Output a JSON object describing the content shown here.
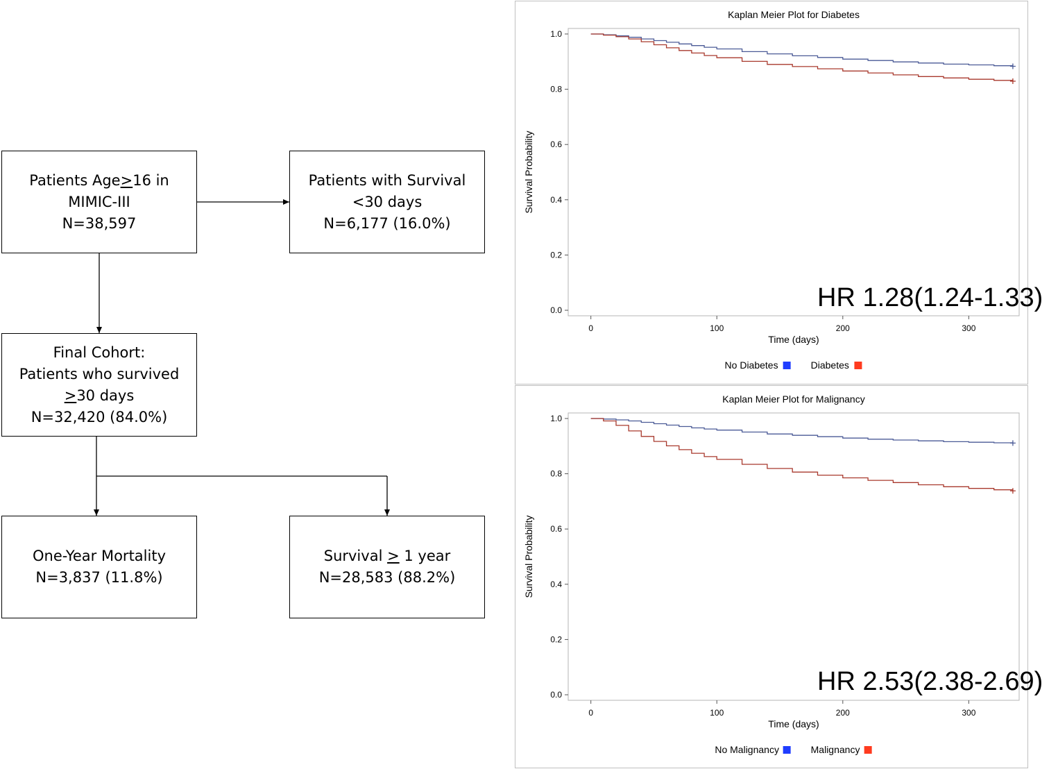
{
  "flowchart": {
    "box_start": {
      "line1_pre": "Patients Age",
      "line1_u": ">",
      "line1_post": "16 in",
      "line2": "MIMIC-III",
      "line3": "N=38,597"
    },
    "box_excluded": {
      "line1": "Patients with Survival",
      "line2": "<30 days",
      "line3": "N=6,177 (16.0%)"
    },
    "box_final": {
      "line1": "Final Cohort:",
      "line2": "Patients who survived",
      "line3_u": ">",
      "line3_post": "30 days",
      "line4": "N=32,420 (84.0%)"
    },
    "box_mortality": {
      "line1": "One-Year Mortality",
      "line2": "N=3,837 (11.8%)"
    },
    "box_survival": {
      "line1_pre": "Survival ",
      "line1_u": ">",
      "line1_post": " 1 year",
      "line2": "N=28,583 (88.2%)"
    }
  },
  "chart_data": [
    {
      "type": "line",
      "title": "Kaplan Meier Plot for Diabetes",
      "xlabel": "Time (days)",
      "ylabel": "Survival Probability",
      "xlim": [
        -18,
        340
      ],
      "ylim": [
        -0.02,
        1.02
      ],
      "xticks": [
        0,
        100,
        200,
        300
      ],
      "xtick_labels": [
        "0",
        "100",
        "200",
        "300"
      ],
      "yticks": [
        0,
        0.2,
        0.4,
        0.6,
        0.8,
        1.0
      ],
      "ytick_labels": [
        "0.0",
        "0.2",
        "0.4",
        "0.6",
        "0.8",
        "1.0"
      ],
      "grid": false,
      "legend": "bottom",
      "annotation": "HR 1.28(1.24-1.33)",
      "series": [
        {
          "name": "No Diabetes",
          "color": "#4a5a96",
          "legend_color": "#1f3dff",
          "x": [
            0,
            10,
            20,
            30,
            40,
            50,
            60,
            70,
            80,
            90,
            100,
            120,
            140,
            160,
            180,
            200,
            220,
            240,
            260,
            280,
            300,
            320,
            335
          ],
          "y": [
            1.0,
            0.997,
            0.993,
            0.988,
            0.982,
            0.976,
            0.97,
            0.964,
            0.958,
            0.952,
            0.946,
            0.936,
            0.928,
            0.921,
            0.915,
            0.909,
            0.904,
            0.899,
            0.895,
            0.891,
            0.888,
            0.885,
            0.883
          ]
        },
        {
          "name": "Diabetes",
          "color": "#a8382c",
          "legend_color": "#ff3b1f",
          "x": [
            0,
            10,
            20,
            30,
            40,
            50,
            60,
            70,
            80,
            90,
            100,
            120,
            140,
            160,
            180,
            200,
            220,
            240,
            260,
            280,
            300,
            320,
            335
          ],
          "y": [
            1.0,
            0.996,
            0.99,
            0.982,
            0.972,
            0.961,
            0.95,
            0.94,
            0.931,
            0.922,
            0.914,
            0.901,
            0.89,
            0.882,
            0.874,
            0.866,
            0.859,
            0.852,
            0.846,
            0.841,
            0.836,
            0.832,
            0.829
          ]
        }
      ]
    },
    {
      "type": "line",
      "title": "Kaplan Meier Plot for Malignancy",
      "xlabel": "Time (days)",
      "ylabel": "Survival Probability",
      "xlim": [
        -18,
        340
      ],
      "ylim": [
        -0.02,
        1.02
      ],
      "xticks": [
        0,
        100,
        200,
        300
      ],
      "xtick_labels": [
        "0",
        "100",
        "200",
        "300"
      ],
      "yticks": [
        0,
        0.2,
        0.4,
        0.6,
        0.8,
        1.0
      ],
      "ytick_labels": [
        "0.0",
        "0.2",
        "0.4",
        "0.6",
        "0.8",
        "1.0"
      ],
      "grid": false,
      "legend": "bottom",
      "annotation": "HR 2.53(2.38-2.69)",
      "series": [
        {
          "name": "No Malignancy",
          "color": "#4a5a96",
          "legend_color": "#1f3dff",
          "x": [
            0,
            10,
            20,
            30,
            40,
            50,
            60,
            70,
            80,
            90,
            100,
            120,
            140,
            160,
            180,
            200,
            220,
            240,
            260,
            280,
            300,
            320,
            335
          ],
          "y": [
            1.0,
            0.998,
            0.995,
            0.991,
            0.986,
            0.981,
            0.976,
            0.971,
            0.966,
            0.962,
            0.958,
            0.951,
            0.944,
            0.939,
            0.934,
            0.929,
            0.925,
            0.922,
            0.919,
            0.916,
            0.914,
            0.912,
            0.911
          ]
        },
        {
          "name": "Malignancy",
          "color": "#a8382c",
          "legend_color": "#ff3b1f",
          "x": [
            0,
            10,
            20,
            30,
            40,
            50,
            60,
            70,
            80,
            90,
            100,
            120,
            140,
            160,
            180,
            200,
            220,
            240,
            260,
            280,
            300,
            320,
            335
          ],
          "y": [
            1.0,
            0.991,
            0.975,
            0.955,
            0.935,
            0.917,
            0.901,
            0.887,
            0.874,
            0.862,
            0.852,
            0.834,
            0.819,
            0.806,
            0.795,
            0.785,
            0.776,
            0.768,
            0.76,
            0.753,
            0.747,
            0.742,
            0.738
          ]
        }
      ]
    }
  ]
}
